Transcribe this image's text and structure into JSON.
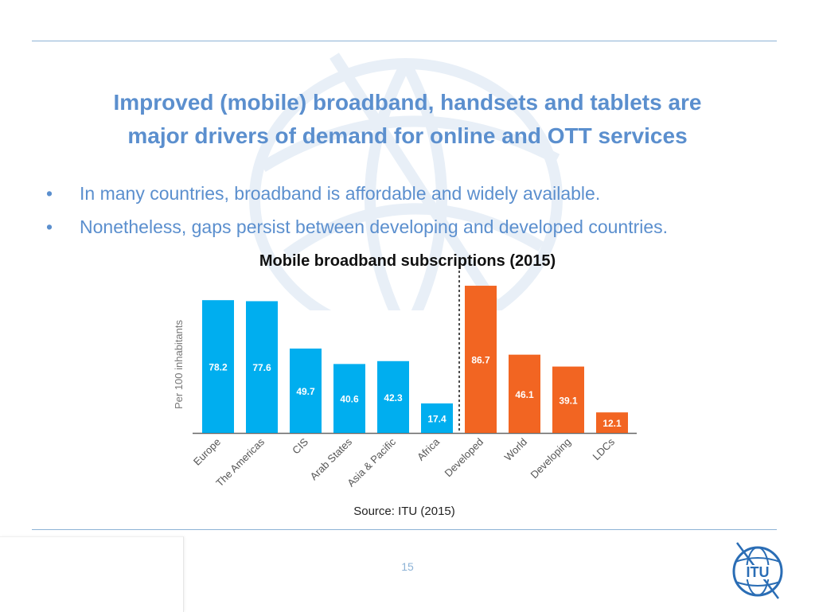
{
  "slide": {
    "title_line1": "Improved (mobile) broadband, handsets and tablets are",
    "title_line2": "major drivers of demand for online and OTT services",
    "bullets": [
      "In many countries, broadband is affordable and widely available.",
      "Nonetheless, gaps persist between developing and developed countries."
    ],
    "bullet_symbol": "•",
    "source": "Source: ITU (2015)",
    "page_number": "15"
  },
  "logo": {
    "text": "ITU",
    "name": "itu-logo"
  },
  "colors": {
    "accent": "#5b8fce",
    "rule": "#8db3d6",
    "region_bar": "#00aeef",
    "group_bar": "#f26522"
  },
  "chart_data": {
    "type": "bar",
    "title": "Mobile broadband subscriptions (2015)",
    "ylabel": "Per 100 inhabitants",
    "xlabel": "",
    "ylim": [
      0,
      90
    ],
    "grid": false,
    "categories": [
      "Europe",
      "The Americas",
      "CIS",
      "Arab States",
      "Asia & Pacific",
      "Africa",
      "Developed",
      "World",
      "Developing",
      "LDCs"
    ],
    "values": [
      78.2,
      77.6,
      49.7,
      40.6,
      42.3,
      17.4,
      86.7,
      46.1,
      39.1,
      12.1
    ],
    "bar_colors": [
      "#00aeef",
      "#00aeef",
      "#00aeef",
      "#00aeef",
      "#00aeef",
      "#00aeef",
      "#f26522",
      "#f26522",
      "#f26522",
      "#f26522"
    ],
    "divider_after_index": 5
  }
}
